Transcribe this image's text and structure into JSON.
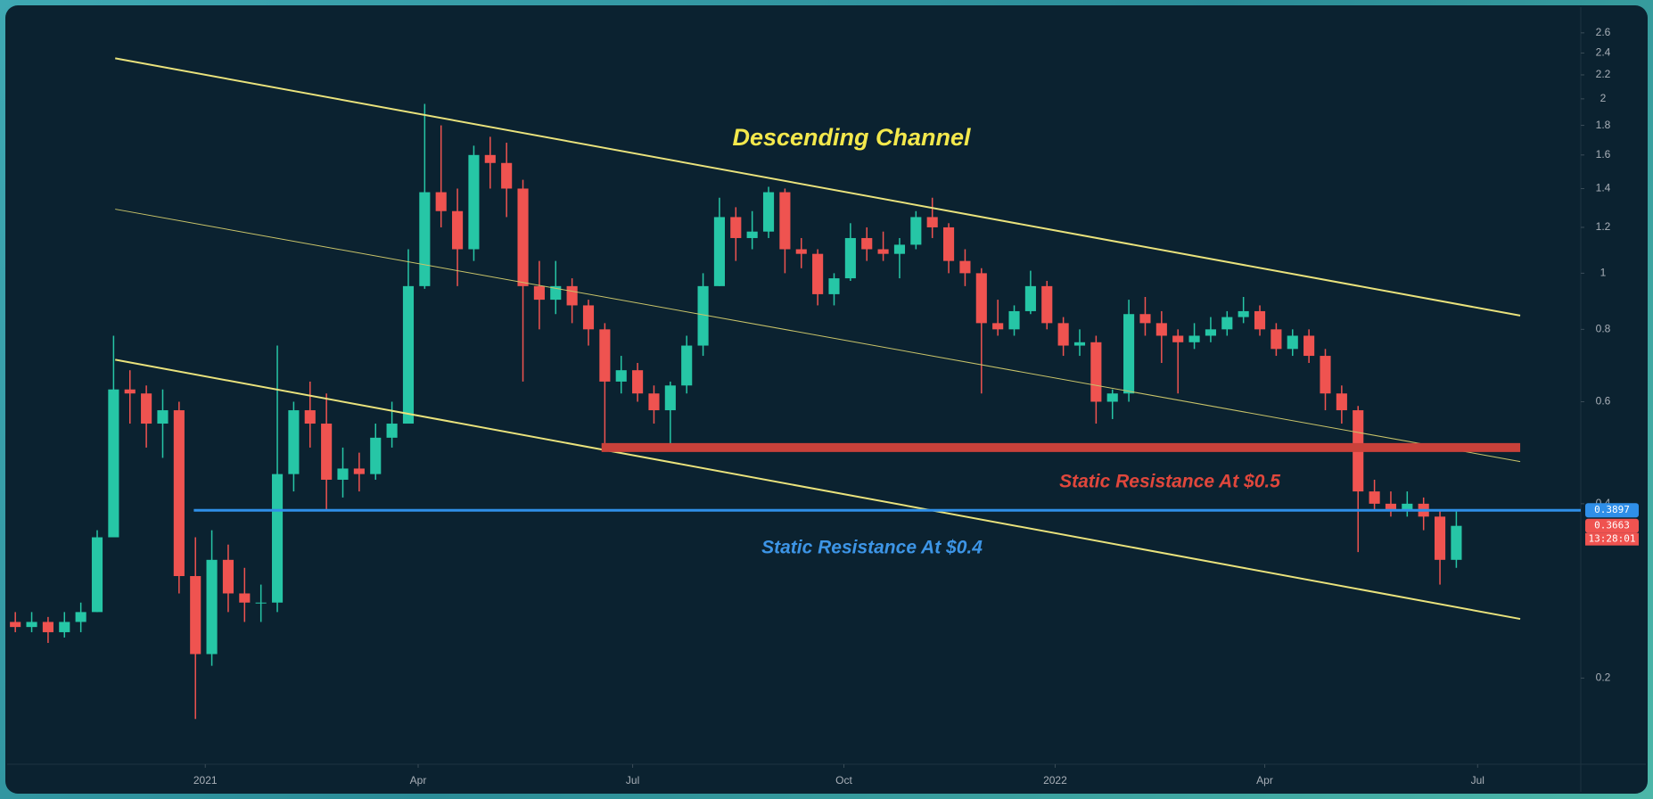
{
  "chart_data": {
    "type": "candlestick",
    "log_scale": true,
    "xlim": [
      -0.5,
      95.6
    ],
    "xticks": [
      {
        "value": 11.6,
        "label": "2021"
      },
      {
        "value": 24.6,
        "label": "Apr"
      },
      {
        "value": 37.7,
        "label": "Jul"
      },
      {
        "value": 50.6,
        "label": "Oct"
      },
      {
        "value": 63.5,
        "label": "2022"
      },
      {
        "value": 76.3,
        "label": "Apr"
      },
      {
        "value": 89.3,
        "label": "Jul"
      }
    ],
    "ylim": [
      0.142,
      2.88
    ],
    "yticks": [
      0.2,
      0.4,
      0.6,
      0.8,
      1,
      1.2,
      1.4,
      1.6,
      1.8,
      2,
      2.2,
      2.4,
      2.6
    ],
    "up_color": "#26c6a6",
    "down_color": "#ef5350",
    "open": [
      0.25,
      0.245,
      0.25,
      0.24,
      0.25,
      0.26,
      0.35,
      0.63,
      0.62,
      0.55,
      0.58,
      0.3,
      0.22,
      0.32,
      0.28,
      0.27,
      0.27,
      0.45,
      0.58,
      0.55,
      0.44,
      0.46,
      0.45,
      0.52,
      0.55,
      0.95,
      1.38,
      1.28,
      1.1,
      1.6,
      1.55,
      1.4,
      0.95,
      0.9,
      0.95,
      0.88,
      0.8,
      0.65,
      0.68,
      0.62,
      0.58,
      0.64,
      0.75,
      0.95,
      1.25,
      1.15,
      1.18,
      1.38,
      1.1,
      1.08,
      0.92,
      0.98,
      1.15,
      1.1,
      1.08,
      1.12,
      1.25,
      1.2,
      1.05,
      1.0,
      0.82,
      0.8,
      0.86,
      0.95,
      0.82,
      0.75,
      0.76,
      0.6,
      0.62,
      0.85,
      0.82,
      0.78,
      0.76,
      0.78,
      0.8,
      0.84,
      0.86,
      0.8,
      0.74,
      0.78,
      0.72,
      0.62,
      0.58,
      0.42,
      0.4,
      0.39,
      0.4,
      0.38,
      0.32
    ],
    "high": [
      0.26,
      0.26,
      0.255,
      0.26,
      0.27,
      0.36,
      0.78,
      0.68,
      0.64,
      0.63,
      0.6,
      0.35,
      0.36,
      0.34,
      0.31,
      0.29,
      0.75,
      0.6,
      0.65,
      0.62,
      0.5,
      0.49,
      0.55,
      0.6,
      1.1,
      1.96,
      1.8,
      1.4,
      1.66,
      1.72,
      1.68,
      1.45,
      1.05,
      1.05,
      0.98,
      0.9,
      0.82,
      0.72,
      0.7,
      0.64,
      0.65,
      0.78,
      1.0,
      1.35,
      1.3,
      1.28,
      1.41,
      1.4,
      1.15,
      1.1,
      1.0,
      1.22,
      1.2,
      1.18,
      1.15,
      1.28,
      1.35,
      1.22,
      1.1,
      1.02,
      0.9,
      0.88,
      1.01,
      0.97,
      0.84,
      0.8,
      0.78,
      0.63,
      0.9,
      0.91,
      0.86,
      0.8,
      0.82,
      0.84,
      0.86,
      0.91,
      0.88,
      0.82,
      0.8,
      0.8,
      0.74,
      0.64,
      0.59,
      0.44,
      0.42,
      0.42,
      0.41,
      0.39,
      0.39
    ],
    "low": [
      0.24,
      0.24,
      0.23,
      0.235,
      0.24,
      0.26,
      0.35,
      0.55,
      0.5,
      0.48,
      0.28,
      0.17,
      0.21,
      0.26,
      0.25,
      0.25,
      0.26,
      0.42,
      0.5,
      0.39,
      0.41,
      0.42,
      0.44,
      0.5,
      0.55,
      0.94,
      1.2,
      0.95,
      1.05,
      1.4,
      1.25,
      0.65,
      0.8,
      0.85,
      0.82,
      0.75,
      0.5,
      0.62,
      0.6,
      0.55,
      0.5,
      0.62,
      0.72,
      0.95,
      1.05,
      1.1,
      1.15,
      1.0,
      1.02,
      0.88,
      0.88,
      0.97,
      1.05,
      1.05,
      0.98,
      1.1,
      1.15,
      1.0,
      0.95,
      0.62,
      0.78,
      0.78,
      0.85,
      0.8,
      0.72,
      0.72,
      0.55,
      0.56,
      0.6,
      0.78,
      0.7,
      0.62,
      0.74,
      0.76,
      0.78,
      0.82,
      0.78,
      0.72,
      0.72,
      0.7,
      0.58,
      0.55,
      0.33,
      0.39,
      0.38,
      0.38,
      0.36,
      0.29,
      0.31
    ],
    "close": [
      0.245,
      0.25,
      0.24,
      0.25,
      0.26,
      0.35,
      0.63,
      0.62,
      0.55,
      0.58,
      0.3,
      0.22,
      0.32,
      0.28,
      0.27,
      0.27,
      0.45,
      0.58,
      0.55,
      0.44,
      0.46,
      0.45,
      0.52,
      0.55,
      0.95,
      1.38,
      1.28,
      1.1,
      1.6,
      1.55,
      1.4,
      0.95,
      0.9,
      0.95,
      0.88,
      0.8,
      0.65,
      0.68,
      0.62,
      0.58,
      0.64,
      0.75,
      0.95,
      1.25,
      1.15,
      1.18,
      1.38,
      1.1,
      1.08,
      0.92,
      0.98,
      1.15,
      1.1,
      1.08,
      1.12,
      1.25,
      1.2,
      1.05,
      1.0,
      0.82,
      0.8,
      0.86,
      0.95,
      0.82,
      0.75,
      0.76,
      0.6,
      0.62,
      0.85,
      0.82,
      0.78,
      0.76,
      0.78,
      0.8,
      0.84,
      0.86,
      0.8,
      0.74,
      0.78,
      0.72,
      0.62,
      0.58,
      0.42,
      0.4,
      0.39,
      0.4,
      0.38,
      0.32,
      0.3663
    ],
    "lines": [
      {
        "x": [
          6.1,
          91.9
        ],
        "y": [
          2.35,
          0.845
        ],
        "color": "#e9e27c",
        "width": 2
      },
      {
        "x": [
          6.1,
          91.9
        ],
        "y": [
          1.29,
          0.473
        ],
        "color": "#c9c46a",
        "width": 1
      },
      {
        "x": [
          6.1,
          91.9
        ],
        "y": [
          0.709,
          0.253
        ],
        "color": "#e9e27c",
        "width": 2
      },
      {
        "x": [
          35.8,
          91.9
        ],
        "y": [
          0.5,
          0.5
        ],
        "color": "#c9413a",
        "width": 10
      },
      {
        "x": [
          10.9,
          95.6
        ],
        "y": [
          0.3897,
          0.3897
        ],
        "color": "#2f8fe8",
        "width": 3
      }
    ],
    "annotations": [
      {
        "text": "Descending Channel",
        "color": "#f3e84c"
      },
      {
        "text": "Static Resistance At $0.5",
        "color": "#e0473c"
      },
      {
        "text": "Static Resistance At $0.4",
        "color": "#3d95e6"
      }
    ],
    "price_labels": [
      {
        "value": 0.3897,
        "color": "#2f8fe8"
      },
      {
        "value": 0.3663,
        "color": "#ef5350"
      }
    ],
    "countdown": "13:28:01"
  }
}
